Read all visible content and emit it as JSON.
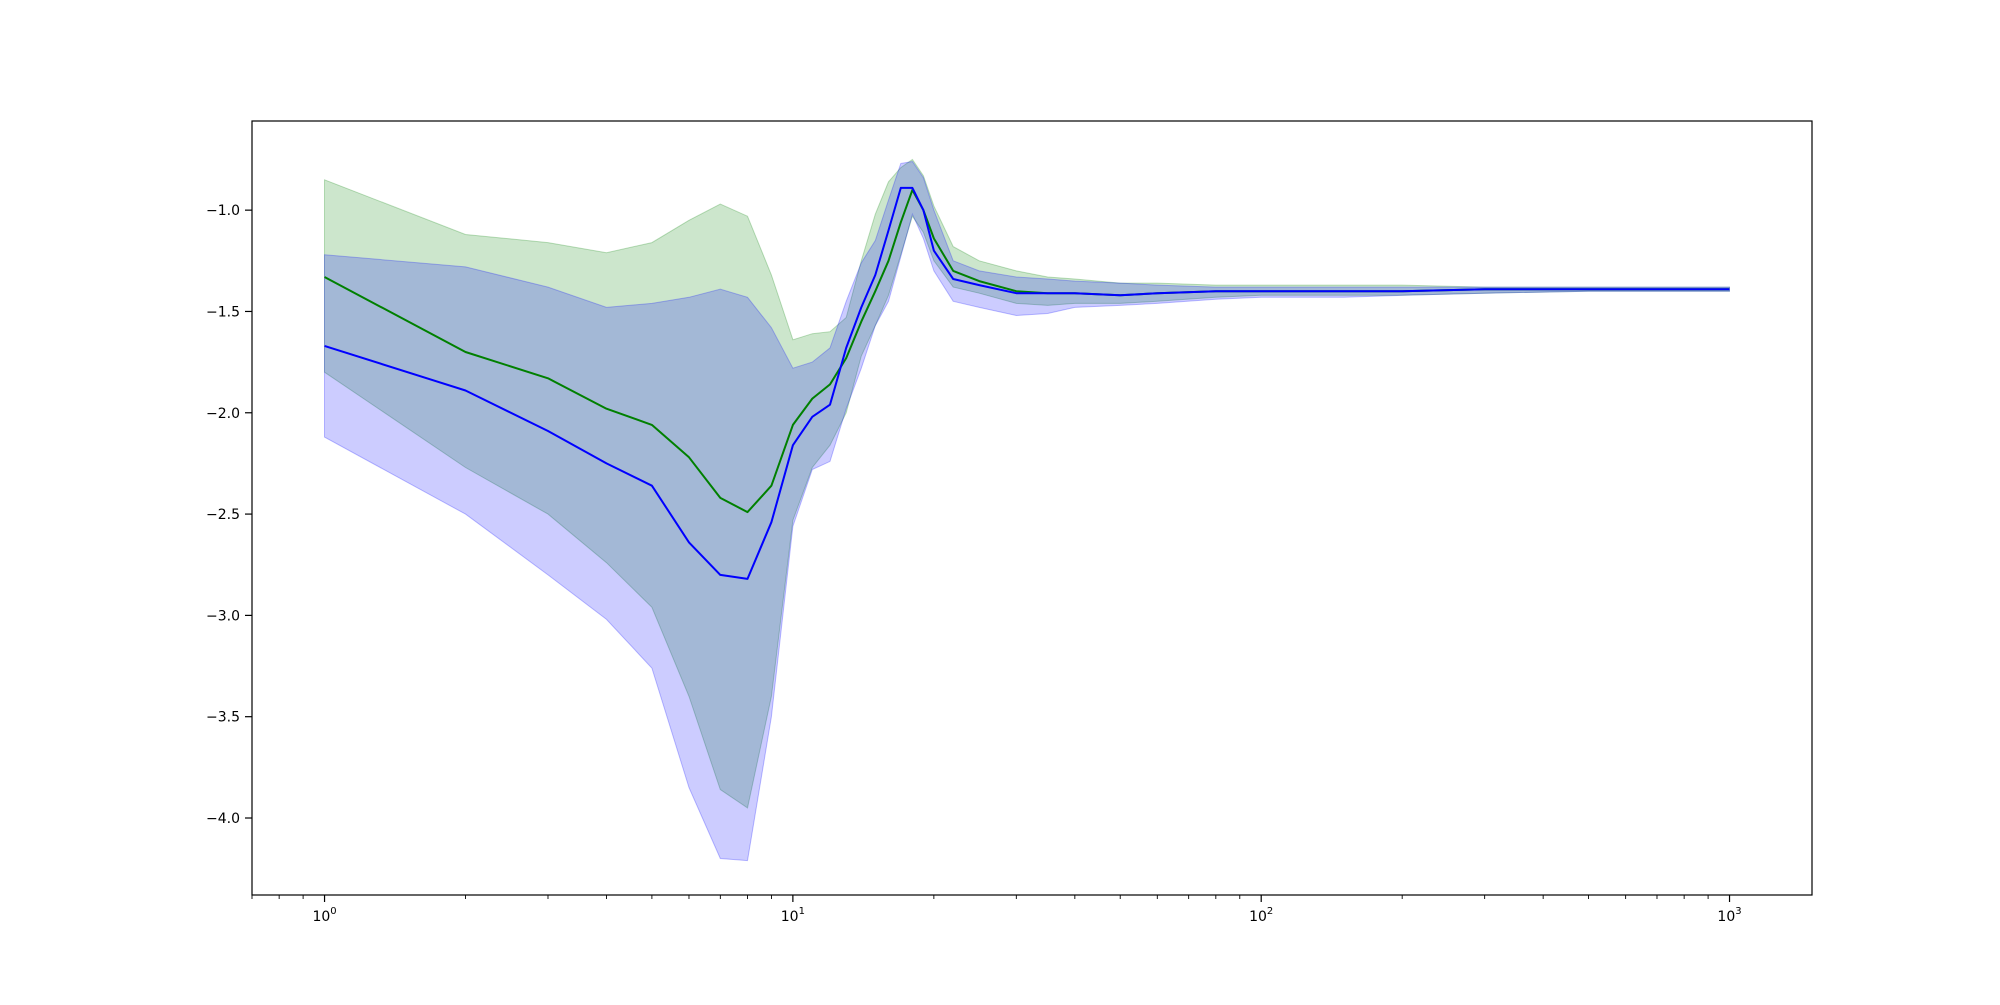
{
  "chart_data": {
    "type": "line",
    "title": "",
    "xlabel": "",
    "ylabel": "",
    "xscale": "log",
    "xlim": [
      0.7,
      1500
    ],
    "ylim": [
      -4.38,
      -0.56
    ],
    "grid": false,
    "legend": "none",
    "x_ticks": [
      {
        "value": 1,
        "base": "10",
        "exp": "0"
      },
      {
        "value": 10,
        "base": "10",
        "exp": "1"
      },
      {
        "value": 100,
        "base": "10",
        "exp": "2"
      },
      {
        "value": 1000,
        "base": "10",
        "exp": "3"
      }
    ],
    "y_ticks": [
      {
        "value": -4.0,
        "label": "−4.0"
      },
      {
        "value": -3.5,
        "label": "−3.5"
      },
      {
        "value": -3.0,
        "label": "−3.0"
      },
      {
        "value": -2.5,
        "label": "−2.5"
      },
      {
        "value": -2.0,
        "label": "−2.0"
      },
      {
        "value": -1.5,
        "label": "−1.5"
      },
      {
        "value": -1.0,
        "label": "−1.0"
      }
    ],
    "series": [
      {
        "color": "#008000",
        "band_color": "#008000",
        "band_opacity": 0.2,
        "x": [
          1,
          2,
          3,
          4,
          5,
          6,
          7,
          8,
          9,
          10,
          11,
          12,
          13,
          14,
          15,
          16,
          17,
          18,
          19,
          20,
          22,
          25,
          30,
          35,
          40,
          50,
          60,
          80,
          100,
          150,
          200,
          300,
          500,
          1000
        ],
        "mean": [
          -1.33,
          -1.7,
          -1.83,
          -1.98,
          -2.06,
          -2.22,
          -2.42,
          -2.49,
          -2.36,
          -2.06,
          -1.93,
          -1.86,
          -1.73,
          -1.55,
          -1.4,
          -1.25,
          -1.06,
          -0.9,
          -1.0,
          -1.14,
          -1.3,
          -1.35,
          -1.4,
          -1.41,
          -1.41,
          -1.42,
          -1.41,
          -1.4,
          -1.4,
          -1.4,
          -1.4,
          -1.39,
          -1.39,
          -1.39
        ],
        "upper": [
          -0.85,
          -1.12,
          -1.16,
          -1.21,
          -1.16,
          -1.05,
          -0.97,
          -1.03,
          -1.32,
          -1.64,
          -1.61,
          -1.6,
          -1.53,
          -1.25,
          -1.02,
          -0.86,
          -0.79,
          -0.75,
          -0.83,
          -0.98,
          -1.18,
          -1.25,
          -1.3,
          -1.33,
          -1.34,
          -1.36,
          -1.36,
          -1.37,
          -1.37,
          -1.37,
          -1.37,
          -1.38,
          -1.38,
          -1.38
        ],
        "lower": [
          -1.8,
          -2.27,
          -2.5,
          -2.74,
          -2.96,
          -3.4,
          -3.86,
          -3.95,
          -3.4,
          -2.53,
          -2.27,
          -2.16,
          -2.0,
          -1.72,
          -1.57,
          -1.42,
          -1.22,
          -1.03,
          -1.11,
          -1.25,
          -1.38,
          -1.41,
          -1.46,
          -1.47,
          -1.46,
          -1.46,
          -1.45,
          -1.43,
          -1.42,
          -1.42,
          -1.42,
          -1.41,
          -1.4,
          -1.4
        ]
      },
      {
        "color": "#0000ff",
        "band_color": "#0000ff",
        "band_opacity": 0.2,
        "x": [
          1,
          2,
          3,
          4,
          5,
          6,
          7,
          8,
          9,
          10,
          11,
          12,
          13,
          14,
          15,
          16,
          17,
          18,
          19,
          20,
          22,
          25,
          30,
          35,
          40,
          50,
          60,
          80,
          100,
          150,
          200,
          300,
          500,
          1000
        ],
        "mean": [
          -1.67,
          -1.89,
          -2.09,
          -2.25,
          -2.36,
          -2.64,
          -2.8,
          -2.82,
          -2.54,
          -2.16,
          -2.02,
          -1.96,
          -1.68,
          -1.48,
          -1.32,
          -1.1,
          -0.89,
          -0.89,
          -1.0,
          -1.2,
          -1.34,
          -1.37,
          -1.41,
          -1.41,
          -1.41,
          -1.42,
          -1.41,
          -1.4,
          -1.4,
          -1.4,
          -1.4,
          -1.39,
          -1.39,
          -1.39
        ],
        "upper": [
          -1.22,
          -1.28,
          -1.38,
          -1.48,
          -1.46,
          -1.43,
          -1.39,
          -1.43,
          -1.58,
          -1.78,
          -1.75,
          -1.68,
          -1.45,
          -1.26,
          -1.15,
          -0.95,
          -0.77,
          -0.76,
          -0.84,
          -1.0,
          -1.25,
          -1.3,
          -1.33,
          -1.34,
          -1.35,
          -1.36,
          -1.37,
          -1.38,
          -1.38,
          -1.38,
          -1.38,
          -1.38,
          -1.38,
          -1.38
        ],
        "lower": [
          -2.12,
          -2.5,
          -2.8,
          -3.02,
          -3.26,
          -3.85,
          -4.2,
          -4.21,
          -3.5,
          -2.56,
          -2.28,
          -2.24,
          -1.98,
          -1.78,
          -1.57,
          -1.45,
          -1.23,
          -1.02,
          -1.14,
          -1.3,
          -1.45,
          -1.48,
          -1.52,
          -1.51,
          -1.48,
          -1.47,
          -1.46,
          -1.44,
          -1.43,
          -1.43,
          -1.42,
          -1.41,
          -1.4,
          -1.4
        ]
      }
    ]
  }
}
